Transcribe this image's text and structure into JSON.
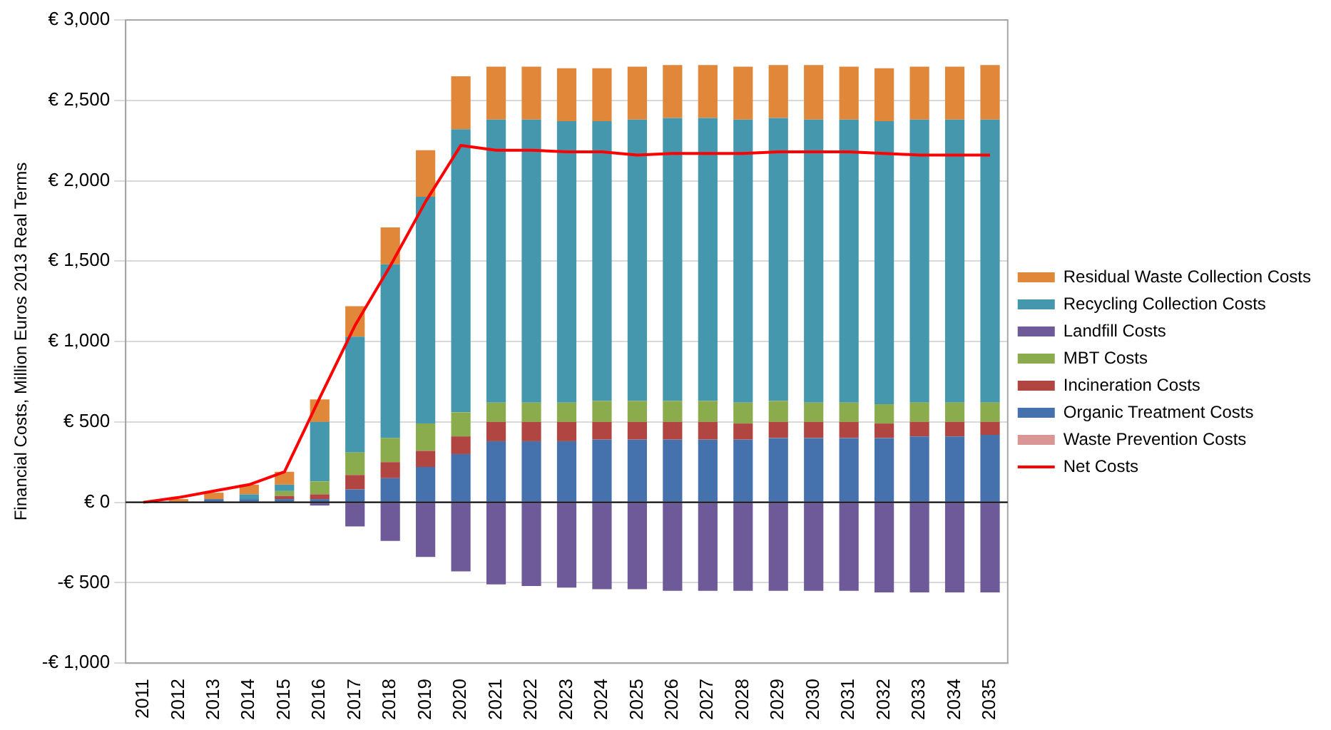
{
  "chart_data": {
    "type": "bar",
    "stacked": true,
    "ylabel": "Financial Costs, Million Euros 2013 Real Terms",
    "categories": [
      "2011",
      "2012",
      "2013",
      "2014",
      "2015",
      "2016",
      "2017",
      "2018",
      "2019",
      "2020",
      "2021",
      "2022",
      "2023",
      "2024",
      "2025",
      "2026",
      "2027",
      "2028",
      "2029",
      "2030",
      "2031",
      "2032",
      "2033",
      "2034",
      "2035"
    ],
    "ylim": [
      -1000,
      3000
    ],
    "yticks": [
      {
        "value": -1000,
        "label": "-€ 1,000"
      },
      {
        "value": -500,
        "label": "-€ 500"
      },
      {
        "value": 0,
        "label": "€ 0"
      },
      {
        "value": 500,
        "label": "€ 500"
      },
      {
        "value": 1000,
        "label": "€ 1,000"
      },
      {
        "value": 1500,
        "label": "€ 1,500"
      },
      {
        "value": 2000,
        "label": "€ 2,000"
      },
      {
        "value": 2500,
        "label": "€ 2,500"
      },
      {
        "value": 3000,
        "label": "€ 3,000"
      }
    ],
    "grid": "y",
    "legend": "right",
    "marker": "none",
    "series": [
      {
        "name": "Waste Prevention Costs",
        "color": "#d99694",
        "values": [
          0,
          0,
          0,
          0,
          0,
          0,
          0,
          0,
          0,
          0,
          0,
          0,
          0,
          0,
          0,
          0,
          0,
          0,
          0,
          0,
          0,
          0,
          0,
          0,
          0
        ]
      },
      {
        "name": "Organic Treatment Costs",
        "color": "#4572ad",
        "values": [
          0,
          0,
          20,
          20,
          20,
          20,
          80,
          150,
          220,
          300,
          380,
          380,
          380,
          390,
          390,
          390,
          390,
          390,
          400,
          400,
          400,
          400,
          410,
          410,
          420
        ]
      },
      {
        "name": "Incineration Costs",
        "color": "#b04542",
        "values": [
          0,
          0,
          0,
          0,
          20,
          30,
          90,
          100,
          100,
          110,
          120,
          120,
          120,
          110,
          110,
          110,
          110,
          100,
          100,
          100,
          100,
          90,
          90,
          90,
          80
        ]
      },
      {
        "name": "MBT Costs",
        "color": "#8aac4c",
        "values": [
          0,
          0,
          0,
          0,
          30,
          80,
          140,
          150,
          170,
          150,
          120,
          120,
          120,
          130,
          130,
          130,
          130,
          130,
          130,
          120,
          120,
          120,
          120,
          120,
          120
        ]
      },
      {
        "name": "Landfill Costs",
        "color": "#6e5a99",
        "values": [
          0,
          0,
          0,
          0,
          0,
          -20,
          -150,
          -240,
          -340,
          -430,
          -510,
          -520,
          -530,
          -540,
          -540,
          -550,
          -550,
          -550,
          -550,
          -550,
          -550,
          -560,
          -560,
          -560,
          -560
        ]
      },
      {
        "name": "Recycling Collection Costs",
        "color": "#4497ad",
        "values": [
          0,
          0,
          0,
          30,
          40,
          370,
          720,
          1080,
          1410,
          1760,
          1760,
          1760,
          1750,
          1740,
          1750,
          1760,
          1760,
          1760,
          1760,
          1760,
          1760,
          1760,
          1760,
          1760,
          1760
        ]
      },
      {
        "name": "Residual Waste Collection Costs",
        "color": "#e0873a",
        "values": [
          0,
          20,
          40,
          60,
          80,
          140,
          190,
          230,
          290,
          330,
          330,
          330,
          330,
          330,
          330,
          330,
          330,
          330,
          330,
          340,
          330,
          330,
          330,
          330,
          340
        ]
      },
      {
        "name": "Net Costs",
        "type": "line",
        "color": "#ff0000",
        "line_style": "solid",
        "values": [
          0,
          30,
          70,
          110,
          190,
          650,
          1100,
          1470,
          1870,
          2220,
          2190,
          2190,
          2180,
          2180,
          2160,
          2170,
          2170,
          2170,
          2180,
          2180,
          2180,
          2170,
          2160,
          2160,
          2160
        ]
      }
    ]
  }
}
